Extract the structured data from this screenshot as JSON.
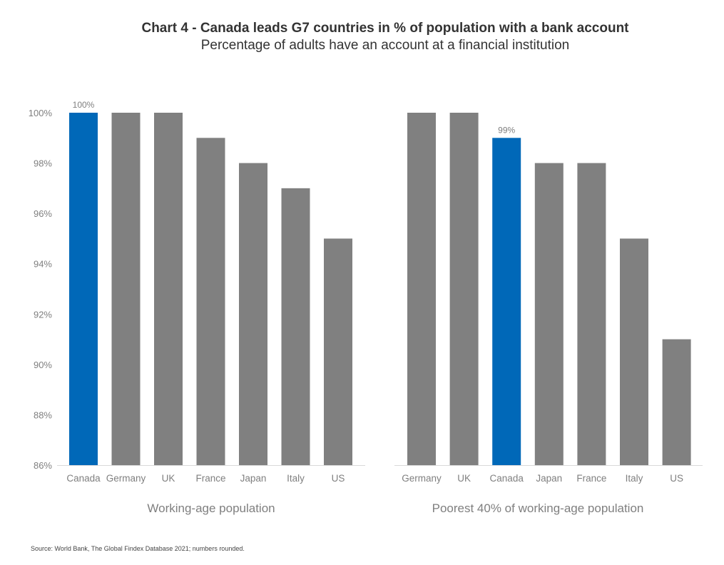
{
  "chart_data": {
    "type": "bar",
    "title": "Chart 4 - Canada leads G7 countries in % of population with a bank account",
    "subtitle": "Percentage of adults have an account at a financial institution",
    "ylabel": "",
    "ylim": [
      86,
      100
    ],
    "yticks": [
      86,
      88,
      90,
      92,
      94,
      96,
      98,
      100
    ],
    "ytick_labels": [
      "86%",
      "88%",
      "90%",
      "92%",
      "94%",
      "96%",
      "98%",
      "100%"
    ],
    "grid": false,
    "legend": "none",
    "colors": {
      "highlight": "#0068b8",
      "default": "#808080"
    },
    "panels": [
      {
        "xlabel": "Working-age population",
        "categories": [
          "Canada",
          "Germany",
          "UK",
          "France",
          "Japan",
          "Italy",
          "US"
        ],
        "values": [
          100,
          100,
          100,
          99,
          98,
          97,
          95
        ],
        "highlight": "Canada",
        "data_label": "100%"
      },
      {
        "xlabel": "Poorest 40% of working-age population",
        "categories": [
          "Germany",
          "UK",
          "Canada",
          "Japan",
          "France",
          "Italy",
          "US"
        ],
        "values": [
          100,
          100,
          99,
          98,
          98,
          95,
          91
        ],
        "highlight": "Canada",
        "data_label": "99%"
      }
    ],
    "source": "Source: World Bank, The Global Findex Database 2021; numbers rounded."
  }
}
